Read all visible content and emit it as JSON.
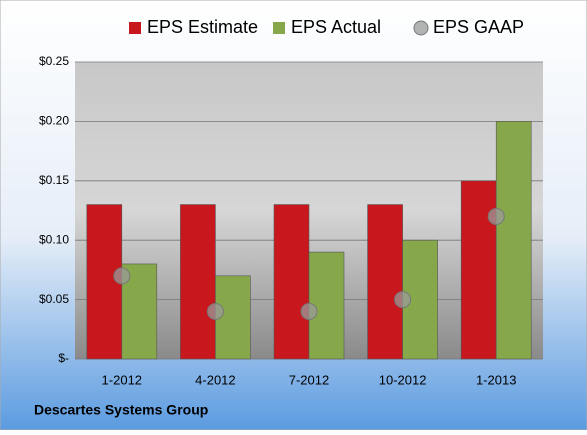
{
  "chart_data": {
    "type": "bar",
    "categories": [
      "1-2012",
      "4-2012",
      "7-2012",
      "10-2012",
      "1-2013"
    ],
    "series": [
      {
        "name": "EPS Estimate",
        "color": "#c8171d",
        "values": [
          0.13,
          0.13,
          0.13,
          0.13,
          0.15
        ]
      },
      {
        "name": "EPS Actual",
        "color": "#86a84a",
        "values": [
          0.08,
          0.07,
          0.09,
          0.1,
          0.2
        ]
      },
      {
        "name": "EPS GAAP",
        "color": "#9a9a9a",
        "type": "scatter",
        "values": [
          0.07,
          0.04,
          0.04,
          0.05,
          0.12
        ]
      }
    ],
    "ylim": [
      0,
      0.25
    ],
    "yticks": [
      {
        "value": 0,
        "label": "$-"
      },
      {
        "value": 0.05,
        "label": "$0.05"
      },
      {
        "value": 0.1,
        "label": "$0.10"
      },
      {
        "value": 0.15,
        "label": "$0.15"
      },
      {
        "value": 0.2,
        "label": "$0.20"
      },
      {
        "value": 0.25,
        "label": "$0.25"
      }
    ],
    "grid": true,
    "legend": "top",
    "footer": "Descartes Systems Group"
  }
}
